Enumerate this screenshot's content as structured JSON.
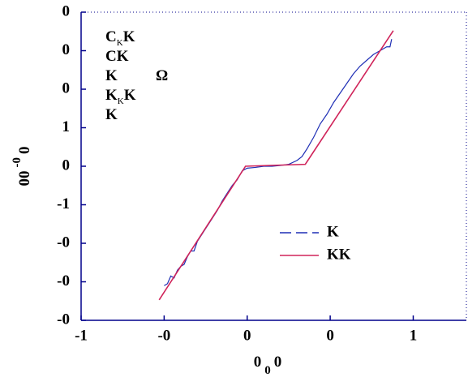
{
  "chart_data": {
    "type": "line",
    "xlabel": [
      "0",
      "0",
      "0"
    ],
    "ylabel": [
      "00",
      "-0",
      "0"
    ],
    "annotations": [
      [
        {
          "text": "C"
        },
        {
          "text": "K",
          "sub": true
        },
        {
          "text": "K"
        }
      ],
      [
        {
          "text": "C"
        },
        {
          "text": "K"
        }
      ],
      [
        {
          "text": "K"
        },
        {
          "text": "Ω"
        }
      ],
      [
        {
          "text": "K"
        },
        {
          "text": "K",
          "sub": true
        },
        {
          "text": "K"
        }
      ],
      [
        {
          "text": "K"
        }
      ]
    ],
    "xlim": [
      -1,
      1.32
    ],
    "ylim": [
      -4,
      4
    ],
    "xticks": [
      {
        "value": -1,
        "label": "-1"
      },
      {
        "value": -0.5,
        "label": "-0"
      },
      {
        "value": 0,
        "label": "0"
      },
      {
        "value": 0.5,
        "label": "0"
      },
      {
        "value": 1,
        "label": "1"
      }
    ],
    "yticks": [
      {
        "value": -4,
        "label": "-0"
      },
      {
        "value": -3,
        "label": "-0"
      },
      {
        "value": -2,
        "label": "-0"
      },
      -1,
      0,
      1,
      {
        "value": 2,
        "label": "0"
      },
      {
        "value": 3,
        "label": "0"
      },
      {
        "value": 4,
        "label": "0"
      }
    ],
    "legend": "lower right",
    "series": [
      {
        "name": "K",
        "color": "#1f2fb5",
        "dash": true,
        "x": [
          -0.5,
          -0.48,
          -0.46,
          -0.44,
          -0.42,
          -0.4,
          -0.38,
          -0.36,
          -0.34,
          -0.32,
          -0.3,
          -0.27,
          -0.24,
          -0.21,
          -0.18,
          -0.15,
          -0.12,
          -0.09,
          -0.06,
          -0.03,
          0.0,
          0.05,
          0.1,
          0.15,
          0.2,
          0.25,
          0.3,
          0.33,
          0.36,
          0.4,
          0.44,
          0.48,
          0.52,
          0.56,
          0.6,
          0.64,
          0.68,
          0.72,
          0.76,
          0.8,
          0.84,
          0.86,
          0.87
        ],
        "values": [
          -3.1,
          -3.05,
          -2.85,
          -2.9,
          -2.7,
          -2.6,
          -2.55,
          -2.35,
          -2.2,
          -2.2,
          -1.95,
          -1.75,
          -1.55,
          -1.35,
          -1.15,
          -0.9,
          -0.7,
          -0.5,
          -0.35,
          -0.12,
          -0.05,
          -0.03,
          0.0,
          0.0,
          0.02,
          0.05,
          0.15,
          0.25,
          0.45,
          0.75,
          1.1,
          1.35,
          1.65,
          1.9,
          2.15,
          2.4,
          2.6,
          2.75,
          2.9,
          3.0,
          3.1,
          3.1,
          3.3
        ]
      },
      {
        "name": "KK",
        "color": "#d0245a",
        "dash": false,
        "x": [
          -0.53,
          -0.01,
          0.35,
          0.88
        ],
        "values": [
          -3.47,
          0.0,
          0.05,
          3.52
        ]
      }
    ]
  }
}
